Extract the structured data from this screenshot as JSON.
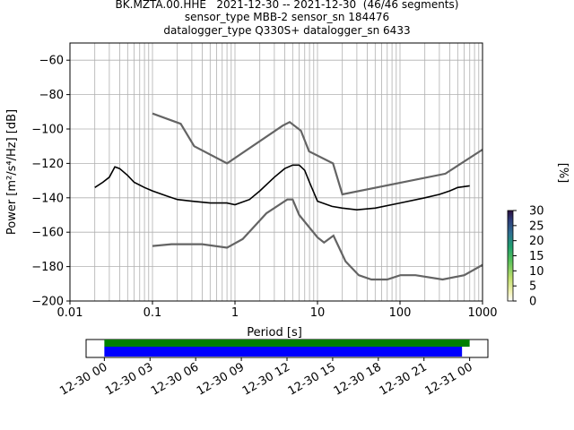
{
  "header": {
    "line1": "BK.MZTA.00.HHE   2021-12-30 -- 2021-12-30  (46/46 segments)",
    "line2": "sensor_type MBB-2 sensor_sn 184476",
    "line3": "datalogger_type Q330S+ datalogger_sn 6433"
  },
  "chart_data": [
    {
      "type": "heatmap",
      "title": "BK.MZTA.00.HHE   2021-12-30 -- 2021-12-30  (46/46 segments)",
      "xlabel": "Period [s]",
      "ylabel": "Power [m²/s⁴/Hz] [dB]",
      "x_scale": "log",
      "xlim": [
        0.01,
        1000
      ],
      "ylim": [
        -200,
        -50
      ],
      "x_ticks": [
        0.01,
        0.1,
        1,
        10,
        100,
        1000
      ],
      "x_tick_labels": [
        "0.01",
        "0.1",
        "1",
        "10",
        "100",
        "1000"
      ],
      "y_ticks": [
        -200,
        -180,
        -160,
        -140,
        -120,
        -100,
        -80,
        -60
      ],
      "y_tick_labels": [
        "−200",
        "−180",
        "−160",
        "−140",
        "−120",
        "−100",
        "−80",
        "−60"
      ],
      "grid": true,
      "colorbar": {
        "label": "[%]",
        "range": [
          0,
          30
        ],
        "ticks": [
          0,
          5,
          10,
          15,
          20,
          25,
          30
        ],
        "colormap": "pqlx (white-yellow-green-dark blue)"
      },
      "mean_psd": {
        "name": "mean",
        "color": "#000000",
        "x": [
          0.02,
          0.025,
          0.03,
          0.035,
          0.04,
          0.05,
          0.06,
          0.08,
          0.1,
          0.15,
          0.2,
          0.3,
          0.5,
          0.8,
          1,
          1.5,
          2,
          3,
          4,
          5,
          6,
          7,
          8,
          10,
          15,
          20,
          30,
          50,
          100,
          200,
          300,
          400,
          500,
          700
        ],
        "y": [
          -134,
          -131,
          -128,
          -122,
          -123,
          -127,
          -131,
          -134,
          -136,
          -139,
          -141,
          -142,
          -143,
          -143,
          -144,
          -141,
          -136,
          -128,
          -123,
          -121,
          -121,
          -124,
          -131,
          -142,
          -145,
          -146,
          -147,
          -146,
          -143,
          -140,
          -138,
          -136,
          -134,
          -133
        ]
      },
      "noise_models": [
        {
          "name": "NHNM",
          "color": "#646464",
          "x": [
            0.1,
            0.22,
            0.32,
            0.8,
            3.8,
            4.6,
            6.3,
            7.9,
            15.4,
            20,
            354.8,
            1000
          ],
          "y": [
            -91,
            -97,
            -110,
            -120,
            -98,
            -96,
            -101,
            -113,
            -120,
            -138,
            -126,
            -112
          ]
        },
        {
          "name": "NLNM",
          "color": "#646464",
          "x": [
            0.1,
            0.17,
            0.4,
            0.8,
            1.24,
            2.4,
            4.3,
            5,
            6,
            10,
            12,
            15.6,
            21.9,
            31.6,
            45,
            70,
            101,
            154,
            328,
            600,
            1000
          ],
          "y": [
            -168,
            -167,
            -167,
            -169,
            -164,
            -149,
            -141,
            -141,
            -150,
            -163,
            -166,
            -162,
            -177,
            -185,
            -187.5,
            -187.5,
            -185,
            -185,
            -187.5,
            -185,
            -179
          ]
        }
      ],
      "psd_spread": {
        "x": [
          0.02,
          0.025,
          0.03,
          0.04,
          0.06,
          0.1,
          0.2,
          0.5,
          1,
          2,
          3,
          5,
          7,
          10,
          20,
          50,
          100,
          300,
          700
        ],
        "y_low": [
          -142,
          -139,
          -138,
          -134,
          -142,
          -145,
          -150,
          -153,
          -151,
          -139,
          -131,
          -125,
          -130,
          -145,
          -159,
          -155,
          -150,
          -142,
          -136
        ],
        "y_high": [
          -126,
          -122,
          -114,
          -116,
          -120,
          -125,
          -127,
          -130,
          -136,
          -131,
          -125,
          -119,
          -122,
          -138,
          -139,
          -135,
          -132,
          -130,
          -128
        ]
      }
    },
    {
      "type": "bar",
      "name": "data-availability",
      "x_tick_labels": [
        "12-30 00",
        "12-30 03",
        "12-30 06",
        "12-30 09",
        "12-30 12",
        "12-30 15",
        "12-30 18",
        "12-30 21",
        "12-31 00"
      ],
      "x_hours": [
        0,
        3,
        6,
        9,
        12,
        15,
        18,
        21,
        24
      ],
      "xlim_hours": [
        -1.2,
        25.2
      ],
      "bars": [
        {
          "label": "processed",
          "color": "#008000",
          "start_hour": 0,
          "end_hour": 24
        },
        {
          "label": "available",
          "color": "#0000ff",
          "start_hour": 0,
          "end_hour": 23.5
        }
      ]
    }
  ]
}
